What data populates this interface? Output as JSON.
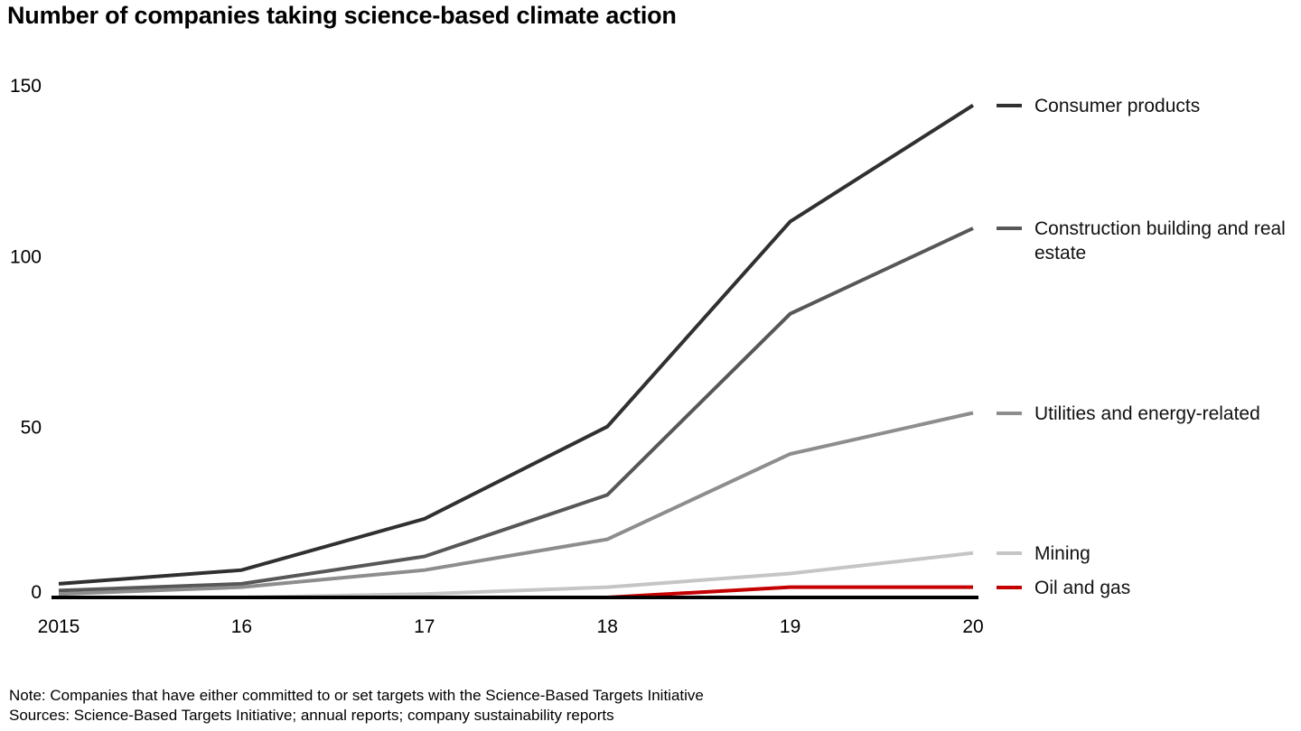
{
  "title": "Number of companies taking science-based climate action",
  "notes": {
    "note": "Note: Companies that have either committed to or set targets with the Science-Based Targets Initiative",
    "sources": "Sources: Science-Based Targets Initiative; annual reports; company sustainability reports"
  },
  "chart_data": {
    "type": "line",
    "title": "Number of companies taking science-based climate action",
    "x": [
      2015,
      2016,
      2017,
      2018,
      2019,
      2020
    ],
    "x_tick_labels": [
      "2015",
      "16",
      "17",
      "18",
      "19",
      "20"
    ],
    "y_ticks": [
      0,
      50,
      100,
      150
    ],
    "y_tick_labels": [
      "0",
      "50",
      "100",
      "150"
    ],
    "ylim": [
      0,
      150
    ],
    "xlabel": "",
    "ylabel": "",
    "grid": false,
    "legend_position": "right-of-line-ends",
    "axis_color": "#000000",
    "series": [
      {
        "name": "Consumer products",
        "color": "#303030",
        "values": [
          4,
          8,
          23,
          50,
          110,
          144
        ]
      },
      {
        "name": "Construction building and real estate",
        "color": "#575757",
        "values": [
          2,
          4,
          12,
          30,
          83,
          108
        ]
      },
      {
        "name": "Utilities and energy-related",
        "color": "#8d8d8d",
        "values": [
          1,
          3,
          8,
          17,
          42,
          54
        ]
      },
      {
        "name": "Mining",
        "color": "#c5c5c5",
        "values": [
          0,
          0,
          1,
          3,
          7,
          13
        ]
      },
      {
        "name": "Oil and gas",
        "color": "#c40000",
        "values": [
          0,
          0,
          0,
          0,
          3,
          3
        ]
      }
    ]
  }
}
